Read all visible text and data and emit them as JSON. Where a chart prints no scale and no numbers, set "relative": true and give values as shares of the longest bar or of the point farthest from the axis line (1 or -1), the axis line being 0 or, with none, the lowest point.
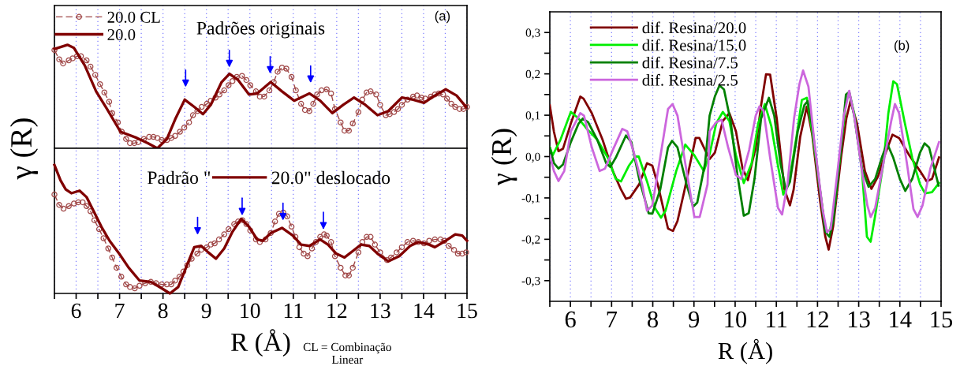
{
  "chart_data": [
    {
      "type": "line",
      "relative": true,
      "title": "Padrões originais",
      "annotations": [
        "(a)"
      ],
      "xlim": [
        5.5,
        15
      ],
      "xticks": [
        {
          "value": 5.5,
          "label": null
        },
        6,
        {
          "value": 6.5,
          "label": null
        },
        7,
        {
          "value": 7.5,
          "label": null
        },
        8,
        {
          "value": 8.5,
          "label": null
        },
        9,
        {
          "value": 9.5,
          "label": null
        },
        10,
        {
          "value": 10.5,
          "label": null
        },
        11,
        {
          "value": 11.5,
          "label": null
        },
        12,
        {
          "value": 12.5,
          "label": null
        },
        13,
        {
          "value": 13.5,
          "label": null
        },
        14,
        {
          "value": 14.5,
          "label": null
        },
        15
      ],
      "tick_labels": false,
      "grid": "x",
      "legend": "top left",
      "series": [
        {
          "name": "20.0 CL",
          "color": "#a04848",
          "marker": "circle",
          "line_style": "dashed",
          "x": [
            5.5,
            5.61,
            5.7,
            5.83,
            5.92,
            6.02,
            6.11,
            6.24,
            6.33,
            6.44,
            6.55,
            6.65,
            6.76,
            6.83,
            6.96,
            7.05,
            7.15,
            7.24,
            7.34,
            7.43,
            7.56,
            7.68,
            7.78,
            7.87,
            7.97,
            8.09,
            8.19,
            8.28,
            8.39,
            8.49,
            8.6,
            8.69,
            8.79,
            8.89,
            9.01,
            9.1,
            9.21,
            9.3,
            9.41,
            9.51,
            9.6,
            9.7,
            9.82,
            9.92,
            10.01,
            10.14,
            10.23,
            10.33,
            10.45,
            10.55,
            10.64,
            10.74,
            10.84,
            10.96,
            11.06,
            11.18,
            11.27,
            11.37,
            11.46,
            11.55,
            11.65,
            11.77,
            11.87,
            11.96,
            12.09,
            12.18,
            12.28,
            12.37,
            12.5,
            12.59,
            12.69,
            12.78,
            12.91,
            13.0,
            13.13,
            13.22,
            13.32,
            13.41,
            13.5,
            13.63,
            13.76,
            13.85,
            13.95,
            14.04,
            14.17,
            14.26,
            14.35,
            14.45,
            14.54,
            14.64,
            14.73,
            14.83,
            14.92,
            15.0
          ],
          "values": [
            0.95,
            0.86,
            0.82,
            0.85,
            0.87,
            0.89,
            0.89,
            0.85,
            0.79,
            0.71,
            0.62,
            0.54,
            0.45,
            0.34,
            0.25,
            0.16,
            0.09,
            0.05,
            0.05,
            0.06,
            0.09,
            0.11,
            0.11,
            0.1,
            0.08,
            0.08,
            0.1,
            0.12,
            0.16,
            0.2,
            0.25,
            0.32,
            0.36,
            0.4,
            0.43,
            0.46,
            0.49,
            0.52,
            0.56,
            0.61,
            0.65,
            0.69,
            0.7,
            0.66,
            0.61,
            0.55,
            0.5,
            0.5,
            0.56,
            0.64,
            0.74,
            0.78,
            0.77,
            0.69,
            0.56,
            0.43,
            0.37,
            0.36,
            0.43,
            0.52,
            0.56,
            0.57,
            0.53,
            0.38,
            0.25,
            0.17,
            0.17,
            0.24,
            0.35,
            0.47,
            0.54,
            0.55,
            0.52,
            0.42,
            0.32,
            0.33,
            0.35,
            0.38,
            0.42,
            0.47,
            0.5,
            0.51,
            0.49,
            0.48,
            0.5,
            0.52,
            0.53,
            0.52,
            0.48,
            0.43,
            0.4,
            0.38,
            0.38,
            0.4
          ]
        },
        {
          "name": "20.0",
          "color": "#800000",
          "x": [
            5.5,
            5.8,
            5.95,
            6.2,
            6.46,
            6.71,
            7.02,
            7.4,
            7.65,
            7.87,
            8.09,
            8.28,
            8.5,
            8.72,
            8.92,
            9.1,
            9.35,
            9.53,
            9.73,
            9.98,
            10.17,
            10.48,
            10.74,
            11.02,
            11.37,
            11.62,
            11.9,
            12.15,
            12.4,
            12.66,
            12.94,
            13.19,
            13.5,
            13.76,
            14.01,
            14.26,
            14.51,
            14.76,
            14.98
          ],
          "values": [
            0.96,
            1.0,
            0.97,
            0.8,
            0.55,
            0.38,
            0.16,
            0.1,
            0.05,
            0,
            0.09,
            0.28,
            0.47,
            0.4,
            0.33,
            0.42,
            0.64,
            0.72,
            0.66,
            0.52,
            0.53,
            0.64,
            0.55,
            0.46,
            0.53,
            0.46,
            0.34,
            0.42,
            0.49,
            0.42,
            0.32,
            0.36,
            0.49,
            0.47,
            0.44,
            0.51,
            0.57,
            0.51,
            0.4
          ]
        }
      ]
    },
    {
      "type": "line",
      "relative": true,
      "ylabel": "γ (R)",
      "xlabel": "R (Å)",
      "legend_title": "Padrão \"",
      "annotations": [
        "CL = Combinação Linear"
      ],
      "xlim": [
        5.5,
        15
      ],
      "xticks": [
        {
          "value": 5.5,
          "label": null
        },
        6,
        {
          "value": 6.5,
          "label": null
        },
        7,
        {
          "value": 7.5,
          "label": null
        },
        8,
        {
          "value": 8.5,
          "label": null
        },
        9,
        {
          "value": 9.5,
          "label": null
        },
        10,
        {
          "value": 10.5,
          "label": null
        },
        11,
        {
          "value": 11.5,
          "label": null
        },
        12,
        {
          "value": 12.5,
          "label": null
        },
        13,
        {
          "value": 13.5,
          "label": null
        },
        14,
        {
          "value": 14.5,
          "label": null
        },
        15
      ],
      "tick_labels": "x",
      "grid": "x",
      "legend": "top",
      "series": [
        {
          "color": "#a04848",
          "marker": "circle",
          "line_style": "dashed",
          "x": [
            5.5,
            5.61,
            5.71,
            5.83,
            5.95,
            6.05,
            6.15,
            6.24,
            6.33,
            6.42,
            6.53,
            6.63,
            6.74,
            6.83,
            6.93,
            7.04,
            7.15,
            7.24,
            7.35,
            7.46,
            7.59,
            7.72,
            7.84,
            7.97,
            8.09,
            8.19,
            8.28,
            8.38,
            8.47,
            8.56,
            8.66,
            8.79,
            8.88,
            9.01,
            9.1,
            9.19,
            9.29,
            9.41,
            9.51,
            9.64,
            9.73,
            9.83,
            9.92,
            10.01,
            10.14,
            10.23,
            10.36,
            10.48,
            10.58,
            10.67,
            10.77,
            10.86,
            10.96,
            11.05,
            11.14,
            11.24,
            11.33,
            11.43,
            11.52,
            11.62,
            11.71,
            11.77,
            11.87,
            11.96,
            12.09,
            12.2,
            12.28,
            12.37,
            12.5,
            12.59,
            12.69,
            12.78,
            12.88,
            13.0,
            13.16,
            13.25,
            13.38,
            13.5,
            13.63,
            13.76,
            13.88,
            14.01,
            14.13,
            14.26,
            14.39,
            14.48,
            14.58,
            14.7,
            14.79,
            14.89,
            14.98
          ],
          "values": [
            0.77,
            0.69,
            0.66,
            0.68,
            0.7,
            0.71,
            0.71,
            0.68,
            0.64,
            0.57,
            0.5,
            0.43,
            0.35,
            0.28,
            0.2,
            0.13,
            0.07,
            0.05,
            0.04,
            0.06,
            0.08,
            0.09,
            0.08,
            0.07,
            0.07,
            0.07,
            0.1,
            0.13,
            0.17,
            0.22,
            0.27,
            0.31,
            0.34,
            0.36,
            0.38,
            0.39,
            0.42,
            0.46,
            0.5,
            0.54,
            0.56,
            0.57,
            0.54,
            0.49,
            0.42,
            0.4,
            0.42,
            0.47,
            0.56,
            0.62,
            0.63,
            0.6,
            0.52,
            0.44,
            0.36,
            0.31,
            0.29,
            0.35,
            0.4,
            0.44,
            0.46,
            0.45,
            0.4,
            0.29,
            0.2,
            0.14,
            0.14,
            0.2,
            0.32,
            0.4,
            0.44,
            0.44,
            0.38,
            0.32,
            0.26,
            0.28,
            0.32,
            0.36,
            0.4,
            0.41,
            0.4,
            0.39,
            0.41,
            0.42,
            0.42,
            0.41,
            0.37,
            0.34,
            0.31,
            0.31,
            0.32
          ]
        },
        {
          "name": "20.0\" deslocado",
          "color": "#800000",
          "x": [
            5.5,
            5.64,
            5.76,
            5.89,
            6.08,
            6.24,
            6.39,
            6.58,
            6.77,
            6.99,
            7.21,
            7.46,
            7.72,
            7.97,
            8.16,
            8.35,
            8.53,
            8.72,
            8.88,
            9.04,
            9.22,
            9.41,
            9.6,
            9.8,
            9.98,
            10.17,
            10.3,
            10.48,
            10.74,
            10.99,
            11.18,
            11.37,
            11.62,
            11.8,
            11.99,
            12.18,
            12.37,
            12.56,
            12.75,
            12.94,
            13.19,
            13.44,
            13.69,
            13.88,
            14.13,
            14.26,
            14.51,
            14.73,
            14.89,
            15.0
          ],
          "values": [
            1.0,
            0.88,
            0.81,
            0.78,
            0.8,
            0.75,
            0.65,
            0.52,
            0.41,
            0.31,
            0.2,
            0.1,
            0.09,
            0.04,
            0,
            0.05,
            0.2,
            0.36,
            0.37,
            0.32,
            0.27,
            0.35,
            0.48,
            0.58,
            0.52,
            0.42,
            0.41,
            0.47,
            0.51,
            0.45,
            0.38,
            0.37,
            0.42,
            0.38,
            0.31,
            0.28,
            0.33,
            0.38,
            0.37,
            0.31,
            0.25,
            0.29,
            0.37,
            0.4,
            0.38,
            0.36,
            0.41,
            0.46,
            0.45,
            0.41
          ]
        }
      ]
    },
    {
      "type": "line",
      "ylabel": "γ (R)",
      "xlabel": "R (Å)",
      "annotations": [
        "(b)"
      ],
      "xlim": [
        5.5,
        15
      ],
      "xticks": [
        {
          "value": 5.5,
          "label": null
        },
        6,
        {
          "value": 6.5,
          "label": null
        },
        7,
        {
          "value": 7.5,
          "label": null
        },
        8,
        {
          "value": 8.5,
          "label": null
        },
        9,
        {
          "value": 9.5,
          "label": null
        },
        10,
        {
          "value": 10.5,
          "label": null
        },
        11,
        {
          "value": 11.5,
          "label": null
        },
        12,
        {
          "value": 12.5,
          "label": null
        },
        13,
        {
          "value": 13.5,
          "label": null
        },
        14,
        {
          "value": 14.5,
          "label": null
        },
        15
      ],
      "ylim": [
        -0.35,
        0.35
      ],
      "yticks": [
        {
          "value": -0.3,
          "label": "-0,3"
        },
        {
          "value": -0.25,
          "label": null
        },
        {
          "value": -0.2,
          "label": "-0,2"
        },
        {
          "value": -0.15,
          "label": null
        },
        {
          "value": -0.1,
          "label": "-0,1"
        },
        {
          "value": -0.05,
          "label": null
        },
        {
          "value": 0,
          "label": "0,0"
        },
        {
          "value": 0.05,
          "label": null
        },
        {
          "value": 0.1,
          "label": "0,1"
        },
        {
          "value": 0.15,
          "label": null
        },
        {
          "value": 0.2,
          "label": "0,2"
        },
        {
          "value": 0.25,
          "label": null
        },
        {
          "value": 0.3,
          "label": "0,3"
        }
      ],
      "grid": "x",
      "legend": "top left",
      "series": [
        {
          "name": "dif. Resina/20.0",
          "color": "#800000",
          "x": [
            5.5,
            5.6,
            5.71,
            5.82,
            6.01,
            6.24,
            6.32,
            6.52,
            6.78,
            7.03,
            7.23,
            7.35,
            7.45,
            7.67,
            7.86,
            7.99,
            8.12,
            8.37,
            8.49,
            8.6,
            8.76,
            8.95,
            9.04,
            9.13,
            9.27,
            9.38,
            9.51,
            9.7,
            9.86,
            10.02,
            10.18,
            10.31,
            10.5,
            10.63,
            10.75,
            10.85,
            11.01,
            11.2,
            11.33,
            11.42,
            11.58,
            11.74,
            11.87,
            12.06,
            12.19,
            12.27,
            12.38,
            12.57,
            12.7,
            12.8,
            12.96,
            13.15,
            13.31,
            13.47,
            13.63,
            13.82,
            13.98,
            14.23,
            14.49,
            14.65,
            14.78,
            14.95
          ],
          "values": [
            0.124,
            0.06,
            0.013,
            0.019,
            0.08,
            0.145,
            0.14,
            0.105,
            0.041,
            -0.035,
            -0.08,
            -0.102,
            -0.099,
            -0.067,
            -0.016,
            -0.022,
            -0.067,
            -0.174,
            -0.18,
            -0.156,
            -0.086,
            0.003,
            0.045,
            0.045,
            0.016,
            -0.006,
            0.01,
            0.086,
            0.105,
            0.061,
            -0.029,
            -0.057,
            0.022,
            0.124,
            0.199,
            0.198,
            0.092,
            -0.08,
            -0.118,
            -0.08,
            0.048,
            0.121,
            0.054,
            -0.105,
            -0.194,
            -0.225,
            -0.169,
            -0.003,
            0.092,
            0.134,
            0.08,
            -0.035,
            -0.078,
            -0.048,
            0.003,
            0.053,
            0.045,
            0.003,
            -0.035,
            -0.06,
            -0.054,
            -0.002
          ]
        },
        {
          "name": "dif. Resina/15.0",
          "color": "#00ee00",
          "x": [
            5.5,
            5.57,
            5.76,
            6.01,
            6.2,
            6.4,
            6.65,
            6.91,
            7.1,
            7.23,
            7.42,
            7.58,
            7.66,
            7.86,
            8.05,
            8.2,
            8.31,
            8.57,
            8.79,
            9.01,
            9.24,
            9.38,
            9.54,
            9.7,
            9.86,
            10.02,
            10.21,
            10.4,
            10.56,
            10.72,
            10.88,
            11.04,
            11.17,
            11.3,
            11.49,
            11.62,
            11.74,
            11.87,
            12.06,
            12.19,
            12.3,
            12.42,
            12.57,
            12.7,
            12.77,
            12.89,
            13.08,
            13.2,
            13.29,
            13.4,
            13.6,
            13.72,
            13.84,
            13.93,
            14.11,
            14.3,
            14.49,
            14.61,
            14.78,
            14.95
          ],
          "values": [
            0.022,
            0.003,
            0.041,
            0.108,
            0.092,
            0.067,
            0.041,
            -0.003,
            -0.054,
            -0.06,
            -0.022,
            0.0,
            0.0,
            -0.06,
            -0.124,
            -0.148,
            -0.131,
            -0.035,
            0.029,
            0.003,
            -0.035,
            0.006,
            0.08,
            0.108,
            0.086,
            0.003,
            -0.064,
            -0.016,
            0.08,
            0.127,
            0.073,
            -0.022,
            -0.092,
            -0.067,
            0.048,
            0.137,
            0.142,
            0.061,
            -0.08,
            -0.178,
            -0.18,
            -0.118,
            0.022,
            0.137,
            0.156,
            0.105,
            -0.035,
            -0.194,
            -0.206,
            -0.143,
            -0.016,
            0.105,
            0.182,
            0.175,
            0.086,
            -0.003,
            -0.067,
            -0.089,
            -0.086,
            -0.064
          ]
        },
        {
          "name": "dif. Resina/7.5",
          "color": "#008000",
          "x": [
            5.5,
            5.6,
            5.71,
            5.82,
            6.01,
            6.2,
            6.3,
            6.43,
            6.65,
            6.87,
            6.97,
            7.1,
            7.35,
            7.48,
            7.67,
            7.9,
            7.99,
            8.18,
            8.37,
            8.47,
            8.6,
            8.82,
            8.98,
            9.08,
            9.27,
            9.38,
            9.51,
            9.62,
            9.73,
            9.89,
            10.05,
            10.21,
            10.33,
            10.47,
            10.63,
            10.82,
            10.95,
            11.1,
            11.23,
            11.33,
            11.52,
            11.68,
            11.76,
            11.87,
            12.06,
            12.19,
            12.29,
            12.38,
            12.57,
            12.69,
            12.77,
            12.89,
            13.08,
            13.24,
            13.4,
            13.56,
            13.69,
            13.84,
            14.0,
            14.13,
            14.3,
            14.49,
            14.6,
            14.71,
            14.94
          ],
          "values": [
            0.022,
            -0.016,
            -0.029,
            -0.019,
            0.035,
            0.08,
            0.092,
            0.083,
            0.041,
            -0.016,
            -0.025,
            -0.003,
            0.051,
            0.035,
            -0.054,
            -0.137,
            -0.138,
            -0.08,
            0.022,
            0.038,
            0.022,
            -0.067,
            -0.121,
            -0.111,
            -0.016,
            0.099,
            0.146,
            0.172,
            0.162,
            0.086,
            -0.041,
            -0.143,
            -0.137,
            -0.054,
            0.092,
            0.142,
            0.099,
            -0.016,
            -0.08,
            -0.061,
            0.061,
            0.124,
            0.134,
            0.073,
            -0.08,
            -0.182,
            -0.194,
            -0.156,
            0.022,
            0.15,
            0.156,
            0.099,
            -0.029,
            -0.073,
            -0.054,
            -0.003,
            0.032,
            -0.003,
            -0.054,
            -0.083,
            -0.054,
            0.01,
            0.032,
            0.022,
            -0.07
          ]
        },
        {
          "name": "dif. Resina/2.5",
          "color": "#cc66dd",
          "x": [
            5.5,
            5.6,
            5.71,
            5.85,
            6.01,
            6.24,
            6.33,
            6.52,
            6.71,
            6.84,
            7.03,
            7.26,
            7.38,
            7.54,
            7.74,
            7.86,
            7.99,
            8.18,
            8.37,
            8.48,
            8.6,
            8.82,
            9.01,
            9.14,
            9.33,
            9.38,
            9.54,
            9.67,
            9.83,
            10.02,
            10.15,
            10.34,
            10.5,
            10.59,
            10.69,
            10.85,
            11.04,
            11.14,
            11.27,
            11.43,
            11.56,
            11.65,
            11.78,
            11.93,
            12.13,
            12.23,
            12.32,
            12.48,
            12.64,
            12.77,
            12.89,
            13.08,
            13.21,
            13.29,
            13.4,
            13.6,
            13.79,
            13.88,
            13.98,
            14.17,
            14.33,
            14.43,
            14.55,
            14.74,
            14.95
          ],
          "values": [
            0.003,
            -0.035,
            -0.059,
            -0.035,
            0.061,
            0.105,
            0.099,
            0.022,
            -0.035,
            -0.029,
            0.016,
            0.067,
            0.061,
            0.01,
            -0.067,
            -0.131,
            -0.118,
            -0.003,
            0.115,
            0.127,
            0.099,
            -0.035,
            -0.146,
            -0.146,
            -0.067,
            0.061,
            0.083,
            0.089,
            0.022,
            -0.045,
            -0.054,
            0.016,
            0.099,
            0.121,
            0.111,
            -0.003,
            -0.124,
            -0.14,
            -0.067,
            0.092,
            0.175,
            0.208,
            0.169,
            0.029,
            -0.131,
            -0.183,
            -0.175,
            -0.041,
            0.099,
            0.159,
            0.099,
            -0.035,
            -0.118,
            -0.146,
            -0.124,
            -0.016,
            0.086,
            0.127,
            0.105,
            -0.016,
            -0.127,
            -0.146,
            -0.118,
            -0.029,
            0.035
          ]
        }
      ]
    }
  ]
}
